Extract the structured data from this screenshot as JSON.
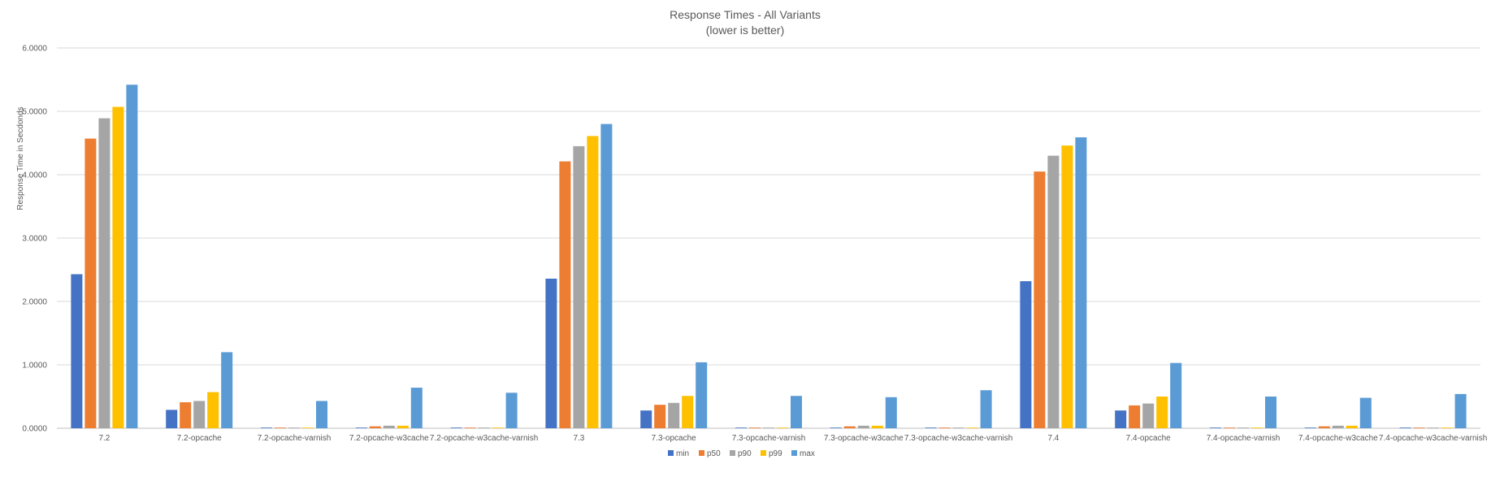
{
  "chart_data": {
    "type": "bar",
    "title": "Response Times - All Variants",
    "subtitle": "(lower is better)",
    "xlabel": "",
    "ylabel": "Response Time in Secdonds",
    "ylim": [
      0,
      6
    ],
    "yticks": [
      "0.0000",
      "1.0000",
      "2.0000",
      "3.0000",
      "4.0000",
      "5.0000",
      "6.0000"
    ],
    "grid": true,
    "legend_position": "bottom",
    "categories": [
      "7.2",
      "7.2-opcache",
      "7.2-opcache-varnish",
      "7.2-opcache-w3cache",
      "7.2-opcache-w3cache-varnish",
      "7.3",
      "7.3-opcache",
      "7.3-opcache-varnish",
      "7.3-opcache-w3cache",
      "7.3-opcache-w3cache-varnish",
      "7.4",
      "7.4-opcache",
      "7.4-opcache-varnish",
      "7.4-opcache-w3cache",
      "7.4-opcache-w3cache-varnish"
    ],
    "series": [
      {
        "name": "min",
        "color": "#4472C4",
        "values": [
          2.43,
          0.29,
          0.0,
          0.01,
          0.0,
          2.36,
          0.28,
          0.0,
          0.01,
          0.0,
          2.32,
          0.28,
          0.0,
          0.01,
          0.0
        ]
      },
      {
        "name": "p50",
        "color": "#ED7D31",
        "values": [
          4.57,
          0.41,
          0.01,
          0.03,
          0.01,
          4.21,
          0.37,
          0.01,
          0.03,
          0.01,
          4.05,
          0.36,
          0.01,
          0.03,
          0.01
        ]
      },
      {
        "name": "p90",
        "color": "#A5A5A5",
        "values": [
          4.89,
          0.43,
          0.01,
          0.04,
          0.01,
          4.45,
          0.4,
          0.01,
          0.04,
          0.01,
          4.3,
          0.39,
          0.01,
          0.04,
          0.01
        ]
      },
      {
        "name": "p99",
        "color": "#FFC000",
        "values": [
          5.07,
          0.57,
          0.01,
          0.04,
          0.01,
          4.61,
          0.51,
          0.01,
          0.04,
          0.01,
          4.46,
          0.5,
          0.01,
          0.04,
          0.01
        ]
      },
      {
        "name": "max",
        "color": "#5B9BD5",
        "values": [
          5.42,
          1.2,
          0.43,
          0.64,
          0.56,
          4.8,
          1.04,
          0.51,
          0.49,
          0.6,
          4.59,
          1.03,
          0.5,
          0.48,
          0.54
        ]
      }
    ]
  }
}
